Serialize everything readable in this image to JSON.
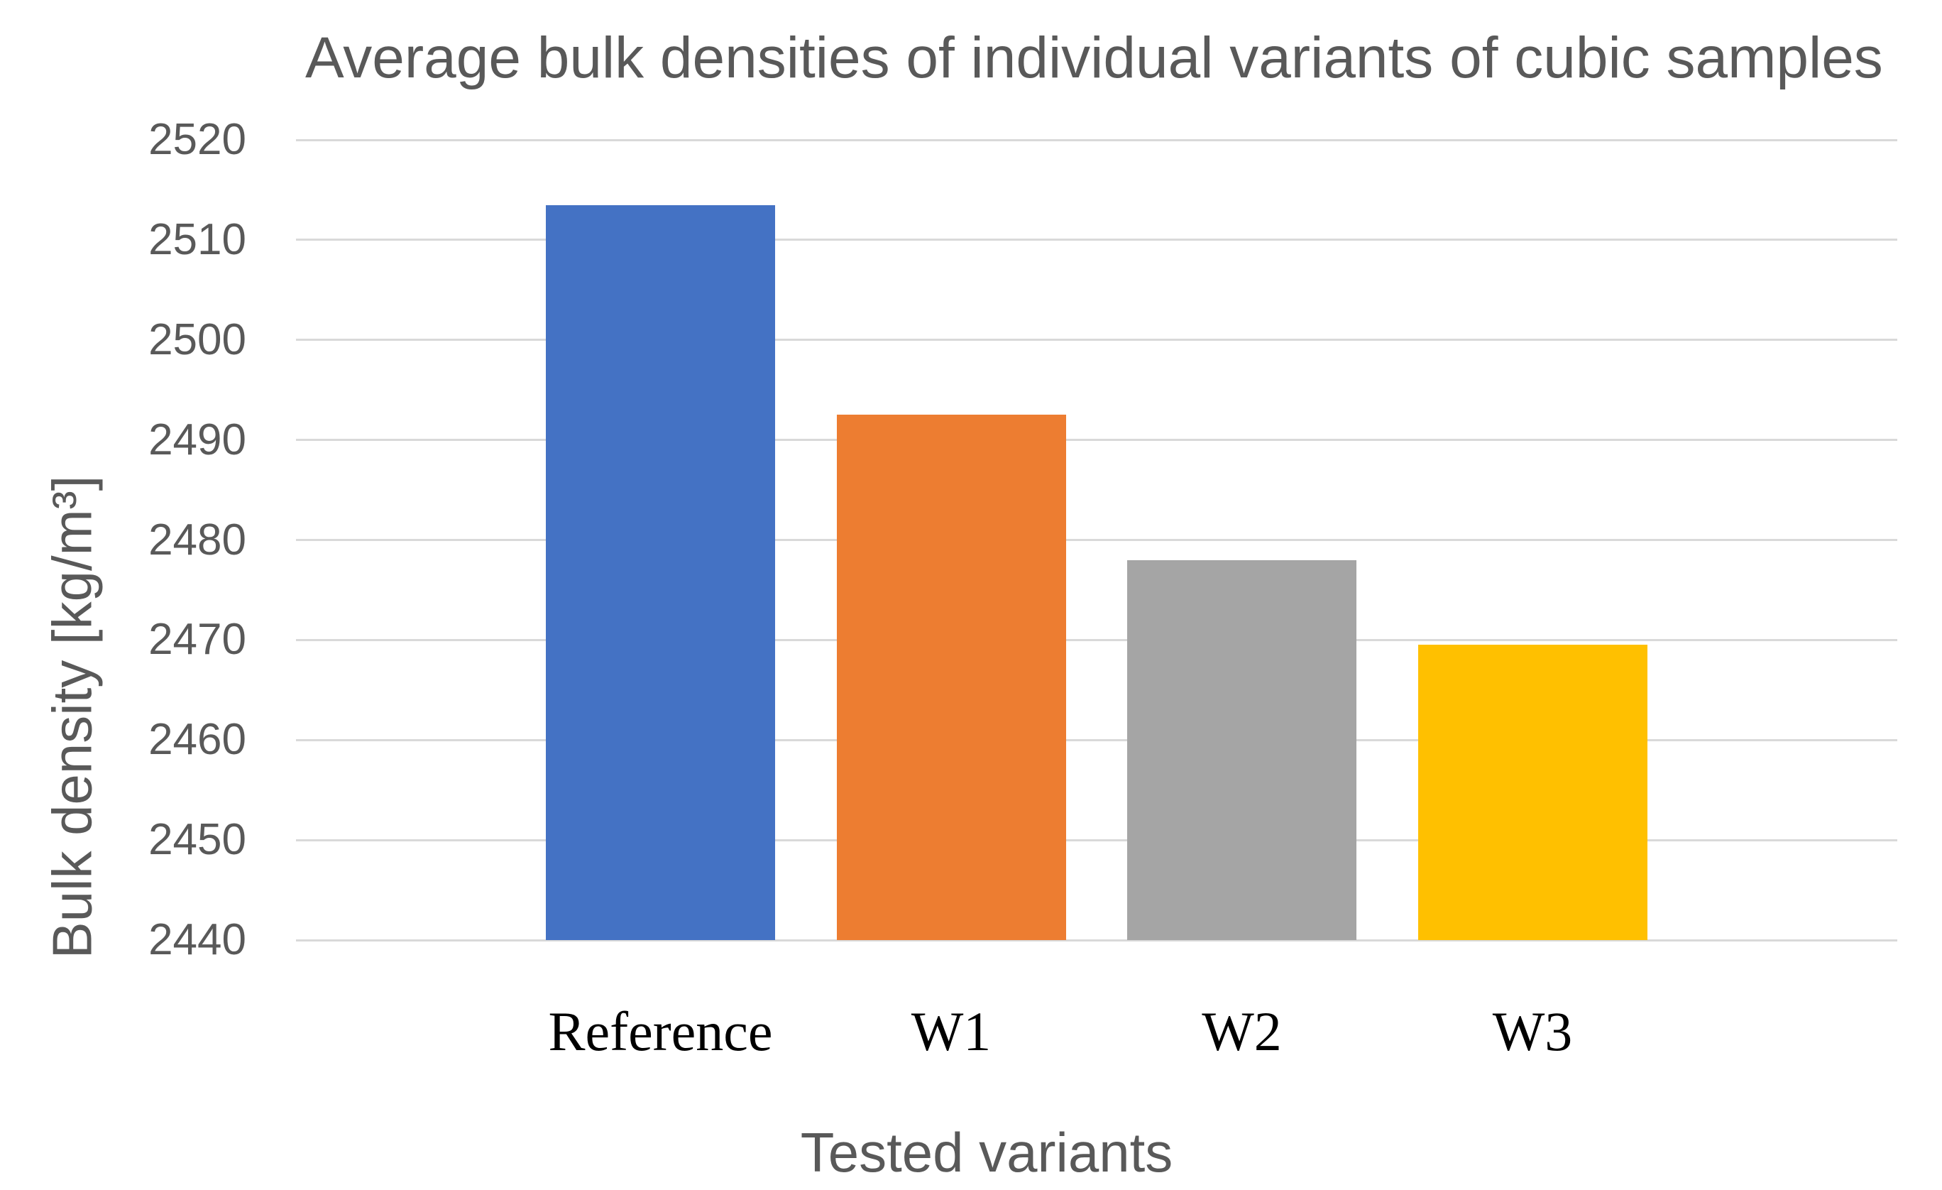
{
  "chart_data": {
    "type": "bar",
    "title": "Average bulk densities of individual variants of cubic samples",
    "xlabel": "Tested variants",
    "ylabel": "Bulk density [kg/m³]",
    "categories": [
      "Reference",
      "W1",
      "W2",
      "W3"
    ],
    "values": [
      2513.5,
      2492.5,
      2478,
      2469.5
    ],
    "bar_colors": [
      "#4472C4",
      "#ED7D31",
      "#A5A5A5",
      "#FFC000"
    ],
    "ylim": [
      2440,
      2520
    ],
    "ytick_step": 10,
    "yticks": [
      2440,
      2450,
      2460,
      2470,
      2480,
      2490,
      2500,
      2510,
      2520
    ],
    "grid": true,
    "legend": "none",
    "colors": {
      "axis_text": "#595959",
      "category_text": "#000000",
      "gridline": "#D9D9D9",
      "background": "#FFFFFF"
    }
  }
}
